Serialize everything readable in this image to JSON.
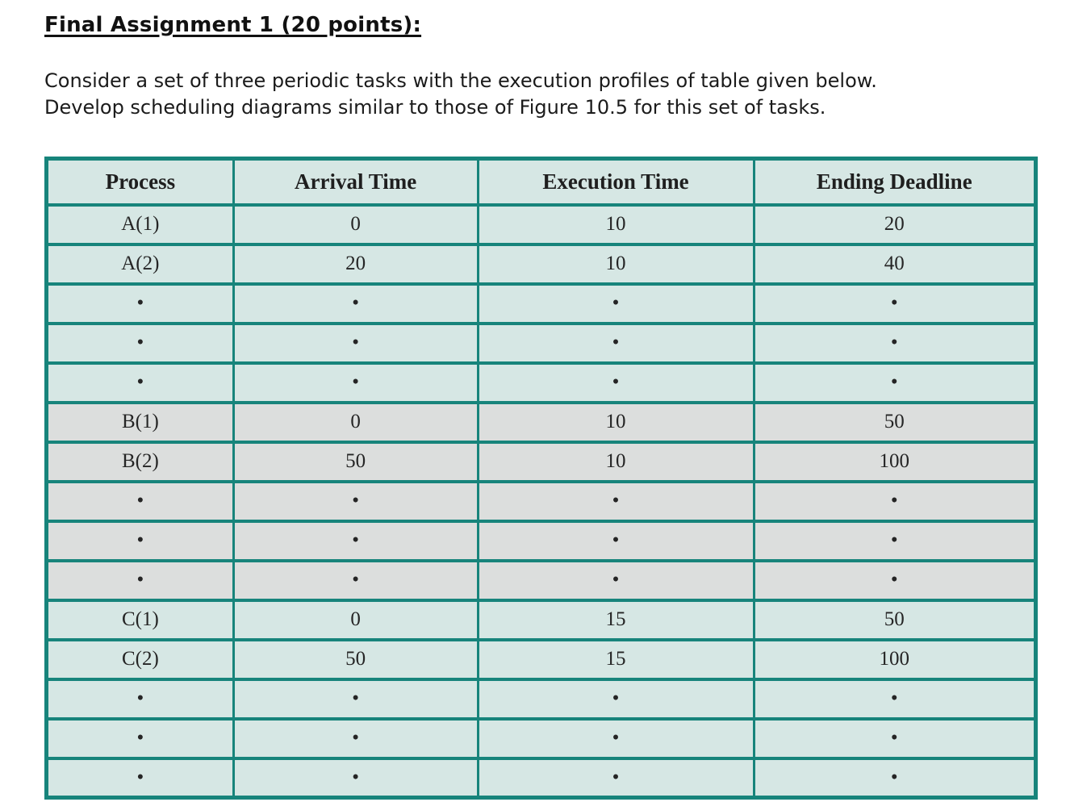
{
  "page": {
    "title": "Final Assignment 1 (20 points):",
    "paragraph_line1": "Consider a set of three periodic tasks with the execution profiles of table given below.",
    "paragraph_line2": "Develop scheduling diagrams similar to those of Figure 10.5 for this set of tasks."
  },
  "table": {
    "headers": [
      "Process",
      "Arrival Time",
      "Execution Time",
      "Ending Deadline"
    ],
    "rows": [
      {
        "cells": [
          "A(1)",
          "0",
          "10",
          "20"
        ],
        "shade": "teal"
      },
      {
        "cells": [
          "A(2)",
          "20",
          "10",
          "40"
        ],
        "shade": "teal"
      },
      {
        "cells": [
          "•",
          "•",
          "•",
          "•"
        ],
        "shade": "teal"
      },
      {
        "cells": [
          "•",
          "•",
          "•",
          "•"
        ],
        "shade": "teal"
      },
      {
        "cells": [
          "•",
          "•",
          "•",
          "•"
        ],
        "shade": "teal"
      },
      {
        "cells": [
          "B(1)",
          "0",
          "10",
          "50"
        ],
        "shade": "gray"
      },
      {
        "cells": [
          "B(2)",
          "50",
          "10",
          "100"
        ],
        "shade": "gray"
      },
      {
        "cells": [
          "•",
          "•",
          "•",
          "•"
        ],
        "shade": "gray"
      },
      {
        "cells": [
          "•",
          "•",
          "•",
          "•"
        ],
        "shade": "gray"
      },
      {
        "cells": [
          "•",
          "•",
          "•",
          "•"
        ],
        "shade": "gray"
      },
      {
        "cells": [
          "C(1)",
          "0",
          "15",
          "50"
        ],
        "shade": "teal"
      },
      {
        "cells": [
          "C(2)",
          "50",
          "15",
          "100"
        ],
        "shade": "teal"
      },
      {
        "cells": [
          "•",
          "•",
          "•",
          "•"
        ],
        "shade": "teal"
      },
      {
        "cells": [
          "•",
          "•",
          "•",
          "•"
        ],
        "shade": "teal"
      },
      {
        "cells": [
          "•",
          "•",
          "•",
          "•"
        ],
        "shade": "teal"
      }
    ]
  },
  "colors": {
    "table_border": "#17847b",
    "row_teal_background": "#d6e7e4",
    "row_gray_background": "#dcdedd",
    "text": "#1d1d1d"
  }
}
